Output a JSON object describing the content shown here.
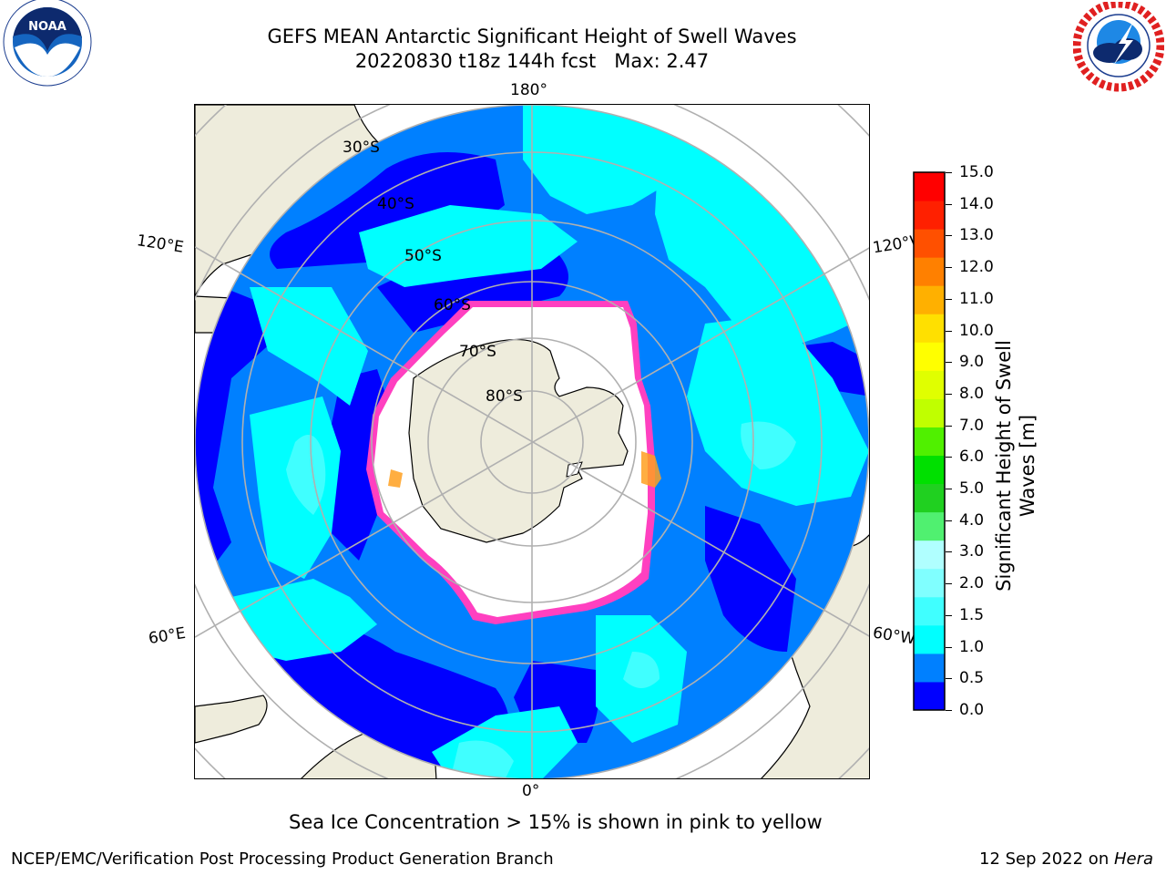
{
  "header": {
    "title_line1": "GEFS MEAN Antarctic Significant Height of Swell Waves",
    "title_line2": "20220830 t18z 144h fcst   Max: 2.47"
  },
  "logos": {
    "left_name": "NOAA",
    "left_ring_text": "NATIONAL OCEANIC AND ATMOSPHERIC ADMINISTRATION",
    "left_bottom_text": "U.S. DEPARTMENT OF COMMERCE",
    "right_ring_text": "NATIONAL WEATHER SERVICE"
  },
  "map": {
    "projection": "south-polar-stereographic",
    "longitude_labels": [
      "180°",
      "120°E",
      "120°W",
      "60°E",
      "60°W",
      "0°"
    ],
    "latitude_labels": [
      "30°S",
      "40°S",
      "50°S",
      "60°S",
      "70°S",
      "80°S"
    ],
    "colors": {
      "ocean_low": "#0000ff",
      "ocean_mid": "#0080ff",
      "ocean_high": "#00ffff",
      "ocean_peak": "#40ffff",
      "land": "#eeecdc",
      "ice": "#ffffff",
      "ice_edge": "#ff40c0",
      "grid": "#b0b0b0"
    }
  },
  "colorbar": {
    "title_line1": "Significant Height of Swell",
    "title_line2": "Waves [m]",
    "ticks": [
      "15.0",
      "14.0",
      "13.0",
      "12.0",
      "11.0",
      "10.0",
      "9.0",
      "8.0",
      "7.0",
      "6.0",
      "5.0",
      "4.0",
      "3.0",
      "2.0",
      "1.5",
      "1.0",
      "0.5",
      "0.0"
    ],
    "colors_bottom_to_top": [
      "#0000ff",
      "#0080ff",
      "#00ffff",
      "#40ffff",
      "#80ffff",
      "#b0ffff",
      "#50f070",
      "#20d020",
      "#00e000",
      "#50f000",
      "#c0ff00",
      "#e0ff00",
      "#ffff00",
      "#ffe000",
      "#ffb000",
      "#ff8000",
      "#ff5000",
      "#ff2000",
      "#ff0000"
    ]
  },
  "caption": "Sea Ice Concentration > 15% is shown in pink to yellow",
  "footer": {
    "left": "NCEP/EMC/Verification Post Processing Product Generation Branch",
    "right_prefix": "12 Sep 2022 on ",
    "right_host": "Hera"
  }
}
